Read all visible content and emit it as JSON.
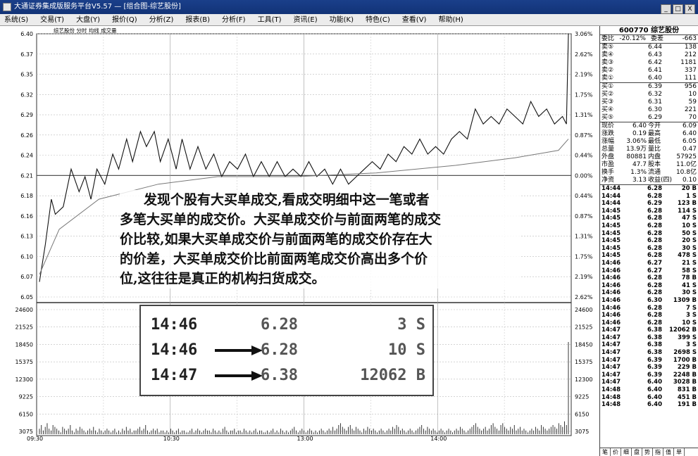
{
  "window": {
    "title": "大通证券集成版服务平台V5.57 — [组合图-综艺股份]",
    "buttons": [
      "_",
      "□",
      "X"
    ]
  },
  "menu": [
    "系统(S)",
    "交易(T)",
    "大盘(Y)",
    "报价(Q)",
    "分析(Z)",
    "报表(B)",
    "分析(F)",
    "工具(T)",
    "资讯(E)",
    "功能(K)",
    "特色(C)",
    "查看(V)",
    "帮助(H)"
  ],
  "chart": {
    "legend": "综艺股份 分时 均线 成交量",
    "price_ticks": [
      "6.40",
      "6.37",
      "6.35",
      "6.32",
      "6.29",
      "6.26",
      "6.24",
      "6.21",
      "6.18",
      "6.16",
      "6.13",
      "6.10",
      "6.07",
      "6.05"
    ],
    "pct_ticks": [
      "3.06%",
      "2.62%",
      "2.19%",
      "1.75%",
      "1.31%",
      "0.87%",
      "0.44%",
      "0.00%",
      "0.44%",
      "0.87%",
      "1.31%",
      "1.75%",
      "2.19%",
      "2.62%"
    ],
    "vol_ticks": [
      "24600",
      "21525",
      "18450",
      "15375",
      "12300",
      "9225",
      "6150",
      "3075"
    ],
    "time_ticks": [
      "09:30",
      "10:30",
      "13:00",
      "14:00"
    ],
    "price_path": [
      [
        0,
        6.07
      ],
      [
        3,
        6.12
      ],
      [
        6,
        6.18
      ],
      [
        8,
        6.16
      ],
      [
        12,
        6.17
      ],
      [
        16,
        6.22
      ],
      [
        20,
        6.19
      ],
      [
        23,
        6.21
      ],
      [
        26,
        6.18
      ],
      [
        29,
        6.22
      ],
      [
        33,
        6.2
      ],
      [
        37,
        6.24
      ],
      [
        40,
        6.22
      ],
      [
        44,
        6.26
      ],
      [
        47,
        6.23
      ],
      [
        51,
        6.27
      ],
      [
        54,
        6.25
      ],
      [
        58,
        6.27
      ],
      [
        61,
        6.23
      ],
      [
        65,
        6.26
      ],
      [
        69,
        6.22
      ],
      [
        72,
        6.26
      ],
      [
        76,
        6.22
      ],
      [
        80,
        6.25
      ],
      [
        84,
        6.22
      ],
      [
        88,
        6.24
      ],
      [
        92,
        6.21
      ],
      [
        96,
        6.23
      ],
      [
        100,
        6.22
      ],
      [
        104,
        6.24
      ],
      [
        108,
        6.21
      ],
      [
        112,
        6.23
      ],
      [
        116,
        6.21
      ],
      [
        120,
        6.23
      ],
      [
        124,
        6.21
      ],
      [
        128,
        6.22
      ],
      [
        132,
        6.21
      ],
      [
        136,
        6.23
      ],
      [
        140,
        6.21
      ],
      [
        144,
        6.22
      ],
      [
        148,
        6.2
      ],
      [
        152,
        6.22
      ],
      [
        156,
        6.2
      ],
      [
        160,
        6.21
      ],
      [
        164,
        6.22
      ],
      [
        168,
        6.23
      ],
      [
        172,
        6.22
      ],
      [
        176,
        6.24
      ],
      [
        180,
        6.23
      ],
      [
        184,
        6.25
      ],
      [
        188,
        6.24
      ],
      [
        192,
        6.26
      ],
      [
        196,
        6.24
      ],
      [
        200,
        6.25
      ],
      [
        204,
        6.24
      ],
      [
        208,
        6.26
      ],
      [
        212,
        6.27
      ],
      [
        216,
        6.26
      ],
      [
        220,
        6.3
      ],
      [
        224,
        6.28
      ],
      [
        228,
        6.29
      ],
      [
        232,
        6.28
      ],
      [
        236,
        6.3
      ],
      [
        240,
        6.29
      ],
      [
        228,
        6.29
      ],
      [
        244,
        6.28
      ],
      [
        248,
        6.31
      ],
      [
        252,
        6.29
      ],
      [
        256,
        6.3
      ],
      [
        260,
        6.28
      ],
      [
        264,
        6.29
      ],
      [
        266,
        6.28
      ],
      [
        267,
        6.4
      ]
    ],
    "avg_path": [
      [
        0,
        6.08
      ],
      [
        10,
        6.14
      ],
      [
        30,
        6.18
      ],
      [
        60,
        6.2
      ],
      [
        90,
        6.21
      ],
      [
        130,
        6.21
      ],
      [
        170,
        6.215
      ],
      [
        210,
        6.225
      ],
      [
        240,
        6.235
      ],
      [
        262,
        6.245
      ],
      [
        267,
        6.26
      ]
    ],
    "volume": [
      3,
      5,
      2,
      4,
      6,
      3,
      2,
      5,
      4,
      3,
      2,
      1,
      4,
      3,
      2,
      3,
      5,
      2,
      1,
      3,
      2,
      4,
      3,
      2,
      1,
      2,
      3,
      2,
      4,
      2,
      1,
      3,
      2,
      1,
      2,
      3,
      2,
      1,
      2,
      3,
      1,
      2,
      1,
      3,
      2,
      4,
      2,
      3,
      1,
      2,
      2,
      3,
      4,
      2,
      3,
      5,
      2,
      1,
      2,
      3,
      2,
      3,
      1,
      2,
      2,
      1,
      2,
      1,
      3,
      2,
      1,
      2,
      3,
      1,
      2,
      2,
      1,
      1,
      2,
      3,
      1,
      2,
      3,
      2,
      1,
      2,
      3,
      2,
      2,
      1,
      3,
      2,
      1,
      2,
      1,
      3,
      4,
      2,
      1,
      2,
      2,
      3,
      1,
      2,
      2,
      1,
      3,
      2,
      1,
      2,
      1,
      2,
      3,
      1,
      2,
      2,
      1,
      1,
      2,
      1,
      2,
      3,
      1,
      2,
      1,
      3,
      2,
      1,
      2,
      1,
      2,
      3,
      4,
      2,
      1,
      2,
      3,
      2,
      1,
      2,
      3,
      2,
      1,
      2,
      1,
      2,
      3,
      2,
      1,
      2,
      3,
      2,
      4,
      2,
      3,
      5,
      6,
      4,
      3,
      2,
      4,
      5,
      3,
      2,
      4,
      3,
      2,
      1,
      3,
      2,
      4,
      3,
      2,
      3,
      2,
      1,
      2,
      3,
      2,
      1,
      2,
      3,
      2,
      4,
      3,
      5,
      4,
      2,
      3,
      2,
      1,
      2,
      3,
      2,
      1,
      2,
      3,
      4,
      5,
      3,
      2,
      4,
      3,
      2,
      3,
      2,
      1,
      2,
      3,
      2,
      1,
      2,
      3,
      2,
      1,
      2,
      3,
      2,
      4,
      3,
      2,
      1,
      2,
      3,
      4,
      5,
      6,
      4,
      3,
      2,
      3,
      4,
      2,
      3,
      5,
      6,
      4,
      3,
      2,
      5,
      6,
      4,
      3,
      2,
      4,
      3,
      5,
      2,
      3,
      4,
      2,
      3,
      2,
      1,
      2,
      3,
      2,
      4,
      3,
      2,
      5,
      4,
      3,
      2,
      3,
      4,
      5,
      4,
      3,
      6,
      5,
      4,
      7,
      5,
      62
    ]
  },
  "quote_panel": {
    "title": "600770 综艺股份",
    "ratio_row": {
      "l1": "委比",
      "v1": "-20.12%",
      "l2": "委差",
      "v2": "-663"
    },
    "asks": [
      {
        "label": "卖⑤",
        "price": "6.44",
        "vol": "138"
      },
      {
        "label": "卖④",
        "price": "6.43",
        "vol": "212"
      },
      {
        "label": "卖③",
        "price": "6.42",
        "vol": "1181"
      },
      {
        "label": "卖②",
        "price": "6.41",
        "vol": "337"
      },
      {
        "label": "卖①",
        "price": "6.40",
        "vol": "111"
      }
    ],
    "bids": [
      {
        "label": "买①",
        "price": "6.39",
        "vol": "956"
      },
      {
        "label": "买②",
        "price": "6.32",
        "vol": "10"
      },
      {
        "label": "买③",
        "price": "6.31",
        "vol": "59"
      },
      {
        "label": "买④",
        "price": "6.30",
        "vol": "221"
      },
      {
        "label": "买⑤",
        "price": "6.29",
        "vol": "70"
      }
    ],
    "stats": [
      {
        "l1": "现价",
        "v1": "6.40",
        "l2": "今开",
        "v2": "6.09"
      },
      {
        "l1": "涨跌",
        "v1": "0.19",
        "l2": "最高",
        "v2": "6.40"
      },
      {
        "l1": "涨幅",
        "v1": "3.06%",
        "l2": "最低",
        "v2": "6.05"
      },
      {
        "l1": "总量",
        "v1": "13.9万",
        "l2": "量比",
        "v2": "0.47"
      },
      {
        "l1": "外盘",
        "v1": "80881",
        "l2": "内盘",
        "v2": "57925"
      },
      {
        "l1": "市盈",
        "v1": "47.7",
        "l2": "股本",
        "v2": "11.0亿"
      },
      {
        "l1": "换手",
        "v1": "1.3%",
        "l2": "流通",
        "v2": "10.8亿"
      },
      {
        "l1": "净资",
        "v1": "3.13",
        "l2": "收益(四)",
        "v2": "0.10"
      }
    ],
    "ticks": [
      [
        "14:44",
        "6.28",
        "20 B"
      ],
      [
        "14:44",
        "6.28",
        "1 S"
      ],
      [
        "14:44",
        "6.29",
        "123 B"
      ],
      [
        "14:45",
        "6.28",
        "114 S"
      ],
      [
        "14:45",
        "6.28",
        "47 S"
      ],
      [
        "14:45",
        "6.28",
        "10 S"
      ],
      [
        "14:45",
        "6.28",
        "50 S"
      ],
      [
        "14:45",
        "6.28",
        "20 S"
      ],
      [
        "14:45",
        "6.28",
        "30 S"
      ],
      [
        "14:45",
        "6.28",
        "478 S"
      ],
      [
        "14:46",
        "6.27",
        "21 S"
      ],
      [
        "14:46",
        "6.27",
        "58 S"
      ],
      [
        "14:46",
        "6.28",
        "78 B"
      ],
      [
        "14:46",
        "6.28",
        "41 S"
      ],
      [
        "14:46",
        "6.28",
        "30 S"
      ],
      [
        "14:46",
        "6.30",
        "1309 B"
      ],
      [
        "14:46",
        "6.28",
        "7 S"
      ],
      [
        "14:46",
        "6.28",
        "3 S"
      ],
      [
        "14:46",
        "6.28",
        "10 S"
      ],
      [
        "14:47",
        "6.38",
        "12062 B"
      ],
      [
        "14:47",
        "6.38",
        "399 S"
      ],
      [
        "14:47",
        "6.38",
        "3 S"
      ],
      [
        "14:47",
        "6.38",
        "2698 S"
      ],
      [
        "14:47",
        "6.39",
        "1700 B"
      ],
      [
        "14:47",
        "6.39",
        "229 B"
      ],
      [
        "14:47",
        "6.39",
        "2248 B"
      ],
      [
        "14:47",
        "6.40",
        "3028 B"
      ],
      [
        "14:48",
        "6.40",
        "831 B"
      ],
      [
        "14:48",
        "6.40",
        "451 B"
      ],
      [
        "14:48",
        "6.40",
        "191 B"
      ]
    ],
    "tabs": [
      "笔",
      "价",
      "细",
      "盘",
      "势",
      "指",
      "值",
      "单"
    ]
  },
  "annotation": {
    "lines": [
      "发现个股有大买单成交,看成交明细中这一笔或者",
      "多笔大买单的成交价。大买单成交价与前面两笔的成交",
      "价比较,如果大买单成交价与前面两笔的成交价存在大",
      "的价差，大买单成交价比前面两笔成交价高出多个价",
      "位,这往往是真正的机构扫货成交。"
    ]
  },
  "inset": {
    "rows": [
      {
        "time": "14:46",
        "price": "6.28",
        "vol": "3 S",
        "arrow": false
      },
      {
        "time": "14:46",
        "price": "6.28",
        "vol": "10 S",
        "arrow": true
      },
      {
        "time": "14:47",
        "price": "6.38",
        "vol": "12062 B",
        "arrow": true
      }
    ]
  }
}
